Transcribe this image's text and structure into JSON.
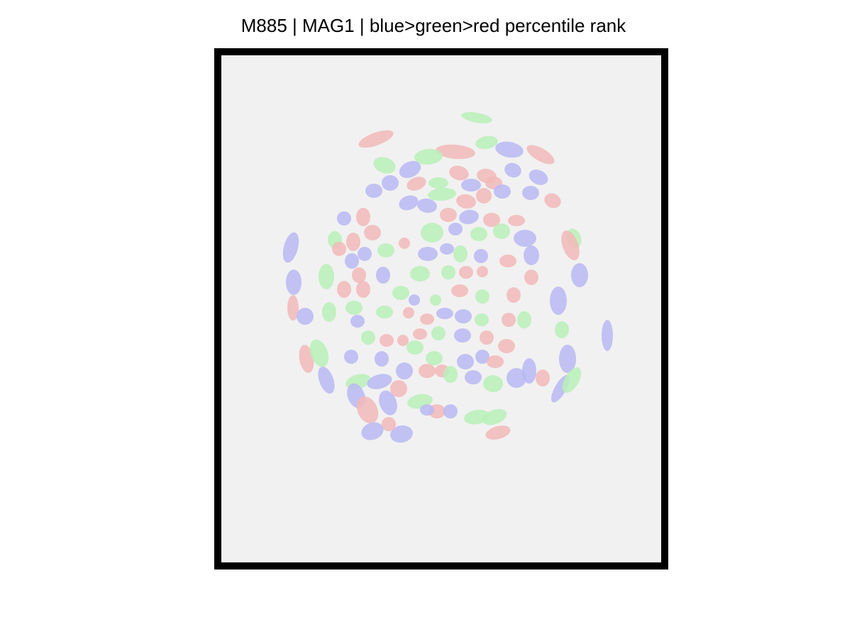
{
  "title": "M885 | MAG1 | blue>green>red percentile rank",
  "colors": {
    "background": "#ffffff",
    "frame": "#000000",
    "tissue": "#f1f1f1",
    "blue": "#b9b9f3",
    "green": "#b9f0b9",
    "red": "#f2b9b9"
  }
}
